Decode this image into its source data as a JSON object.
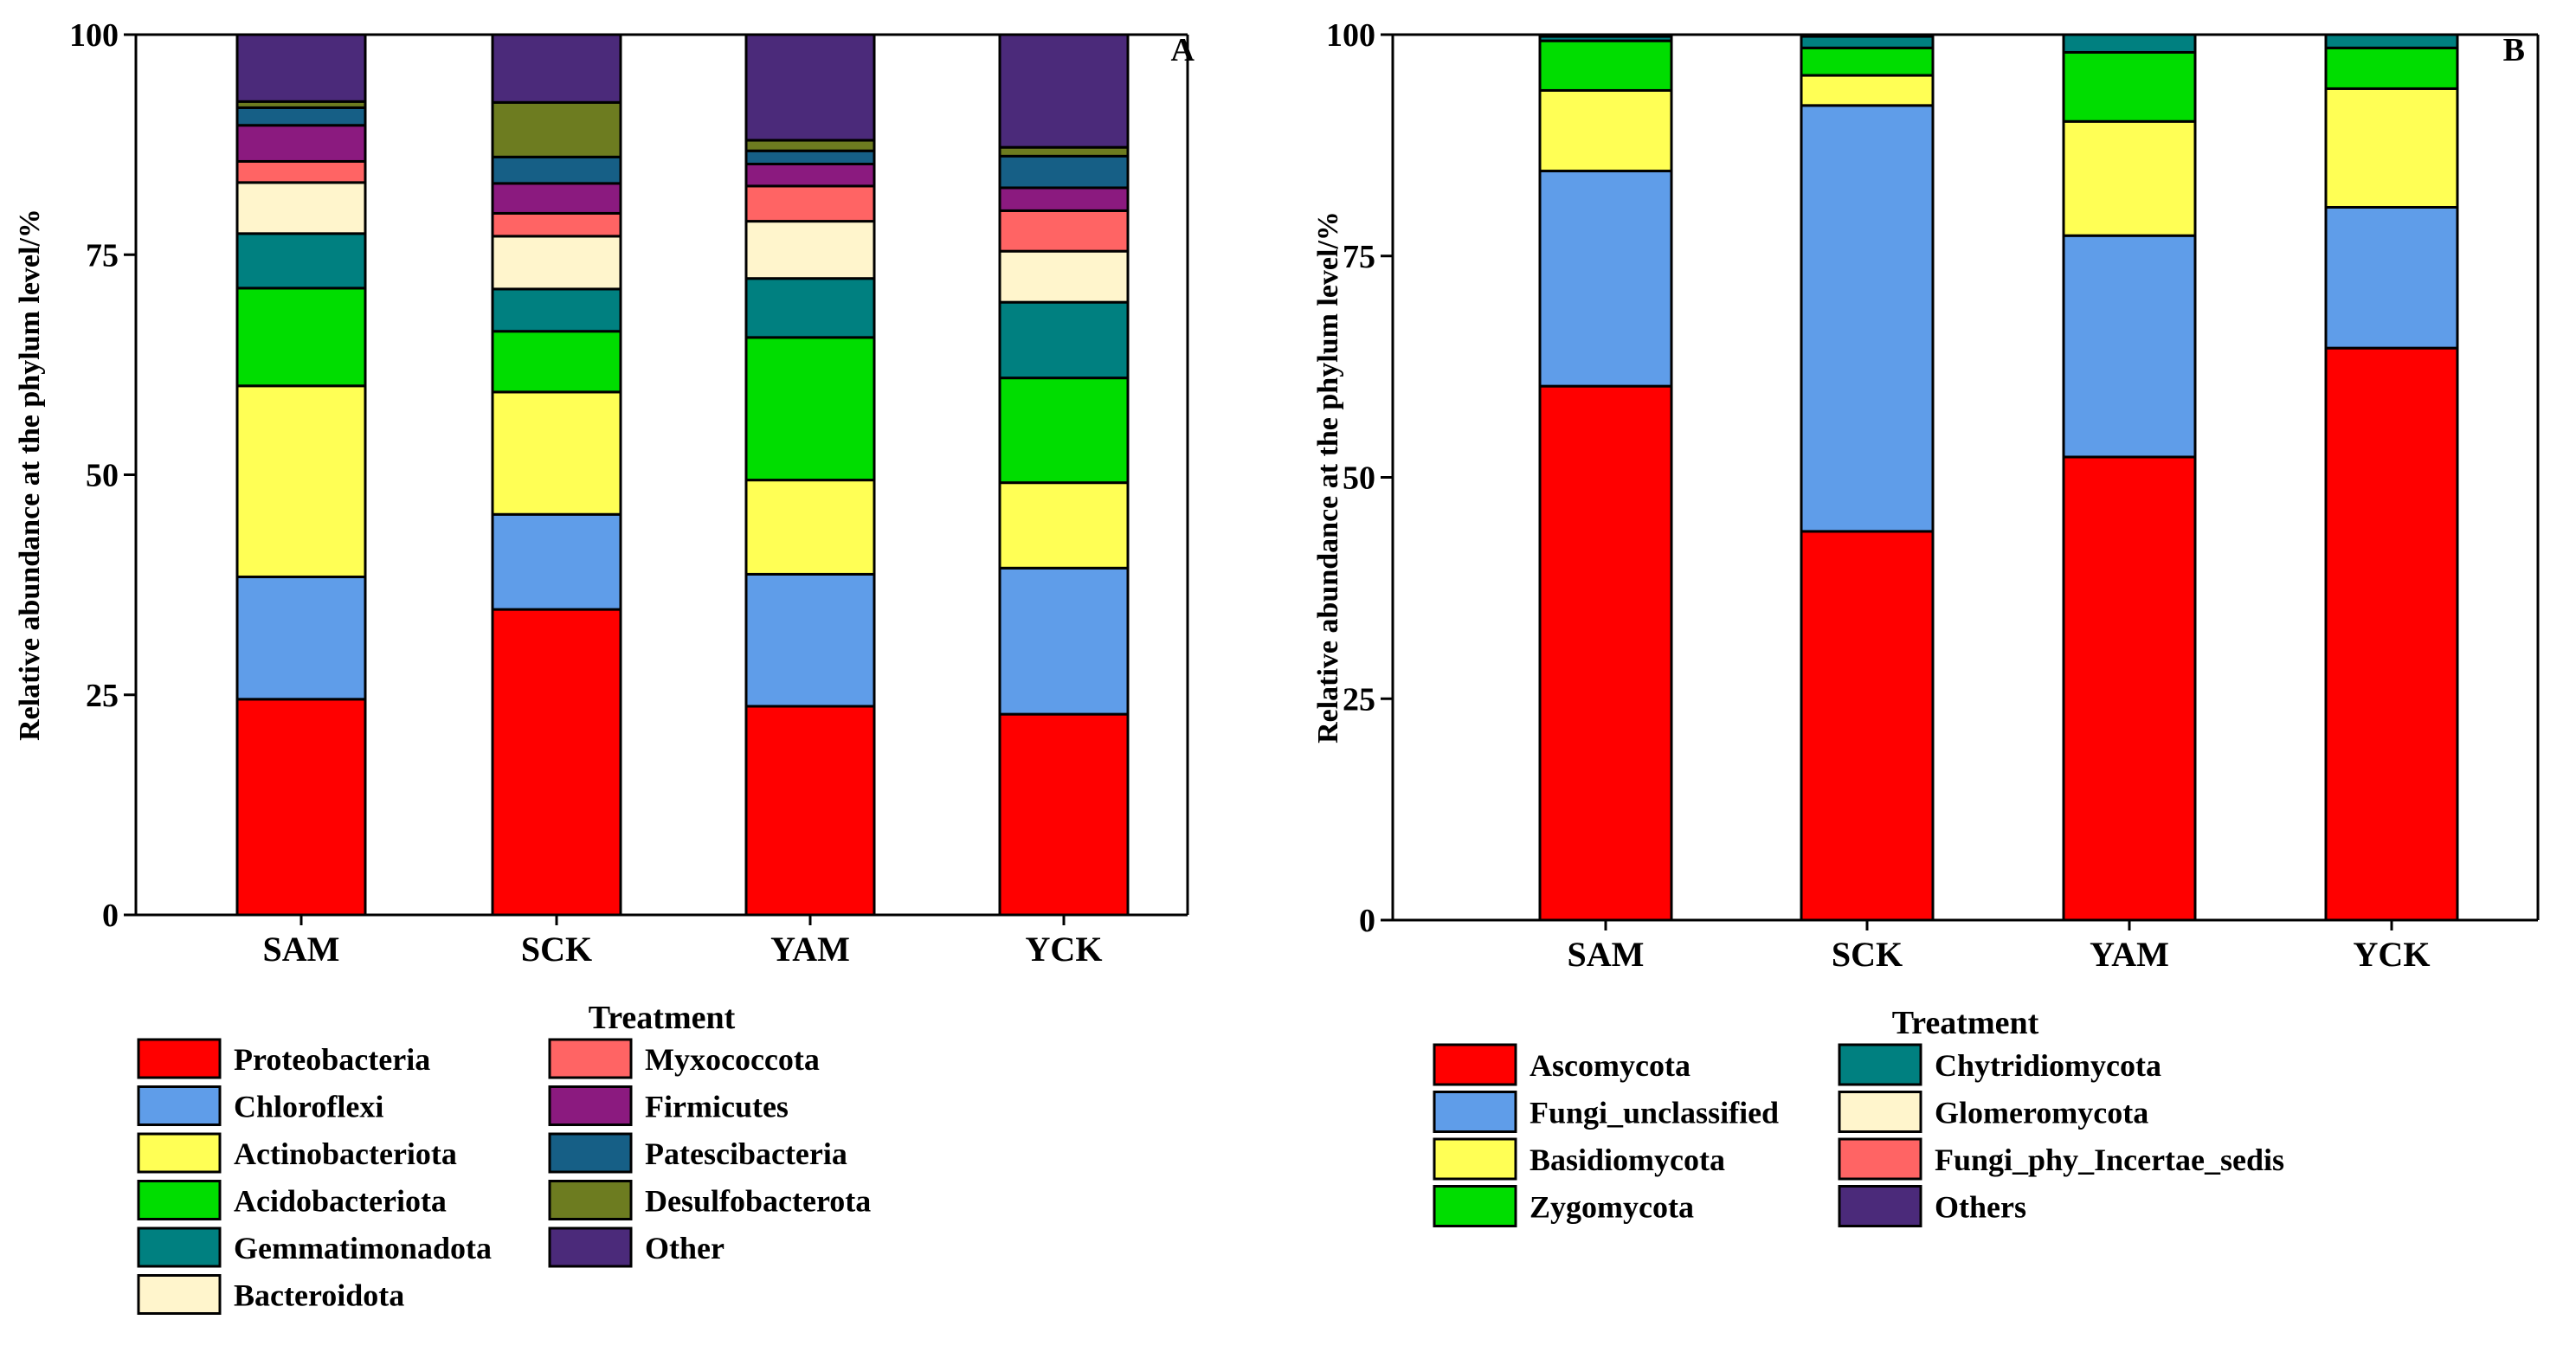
{
  "chart_data": [
    {
      "panel_label": "A",
      "type": "stacked-bar",
      "title": "",
      "xlabel": "Treatment",
      "ylabel": "Relative abundance at the phylum level/%",
      "ylim": [
        0,
        100
      ],
      "yticks": [
        "0",
        "25",
        "50",
        "75",
        "100"
      ],
      "categories": [
        "SAM",
        "SCK",
        "YAM",
        "YCK"
      ],
      "legend_position": "bottom",
      "series": [
        {
          "name": "Proteobacteria",
          "color": "#ff0000",
          "values": [
            24.5,
            34.7,
            23.7,
            22.8
          ]
        },
        {
          "name": "Chloroflexi",
          "color": "#5f9de9",
          "values": [
            13.9,
            10.8,
            15.0,
            16.6
          ]
        },
        {
          "name": "Actinobacteriota",
          "color": "#ffff55",
          "values": [
            21.7,
            13.9,
            10.7,
            9.7
          ]
        },
        {
          "name": "Acidobacteriota",
          "color": "#00dd00",
          "values": [
            11.1,
            6.9,
            16.2,
            11.9
          ]
        },
        {
          "name": "Gemmatimonadota",
          "color": "#008080",
          "values": [
            6.2,
            4.8,
            6.7,
            8.6
          ]
        },
        {
          "name": "Bacteroidota",
          "color": "#fff5cc",
          "values": [
            5.8,
            6.0,
            6.5,
            5.8
          ]
        },
        {
          "name": "Myxococcota",
          "color": "#ff6464",
          "values": [
            2.4,
            2.6,
            4.0,
            4.6
          ]
        },
        {
          "name": "Firmicutes",
          "color": "#8b1a7f",
          "values": [
            4.1,
            3.4,
            2.5,
            2.6
          ]
        },
        {
          "name": "Patescibacteria",
          "color": "#165f86",
          "values": [
            2.0,
            3.0,
            1.5,
            3.6
          ]
        },
        {
          "name": "Desulfobacterota",
          "color": "#6d7c20",
          "values": [
            0.7,
            6.2,
            1.2,
            1.0
          ]
        },
        {
          "name": "Other",
          "color": "#4b2a7a",
          "values": [
            7.6,
            7.7,
            12.0,
            12.8
          ]
        }
      ]
    },
    {
      "panel_label": "B",
      "type": "stacked-bar",
      "title": "",
      "xlabel": "Treatment",
      "ylabel": "Relative abundance at the phylum level/%",
      "ylim": [
        0,
        100
      ],
      "yticks": [
        "0",
        "25",
        "50",
        "75",
        "100"
      ],
      "categories": [
        "SAM",
        "SCK",
        "YAM",
        "YCK"
      ],
      "legend_position": "bottom",
      "series": [
        {
          "name": "Ascomycota",
          "color": "#ff0000",
          "values": [
            60.3,
            43.9,
            52.3,
            64.6
          ]
        },
        {
          "name": "Fungi_unclassified",
          "color": "#5f9de9",
          "values": [
            24.3,
            48.1,
            25.0,
            15.9
          ]
        },
        {
          "name": "Basidiomycota",
          "color": "#ffff55",
          "values": [
            9.1,
            3.4,
            12.9,
            13.4
          ]
        },
        {
          "name": "Zygomycota",
          "color": "#00dd00",
          "values": [
            5.6,
            3.1,
            7.8,
            4.6
          ]
        },
        {
          "name": "Chytridiomycota",
          "color": "#008080",
          "values": [
            0.5,
            1.3,
            2.0,
            1.5
          ]
        },
        {
          "name": "Glomeromycota",
          "color": "#fff5cc",
          "values": [
            0.0,
            0.0,
            0.0,
            0.0
          ]
        },
        {
          "name": "Fungi_phy_Incertae_sedis",
          "color": "#ff6464",
          "values": [
            0.0,
            0.0,
            0.0,
            0.0
          ]
        },
        {
          "name": "Others",
          "color": "#4b2a7a",
          "values": [
            0.2,
            0.2,
            0.0,
            0.0
          ]
        }
      ]
    }
  ]
}
